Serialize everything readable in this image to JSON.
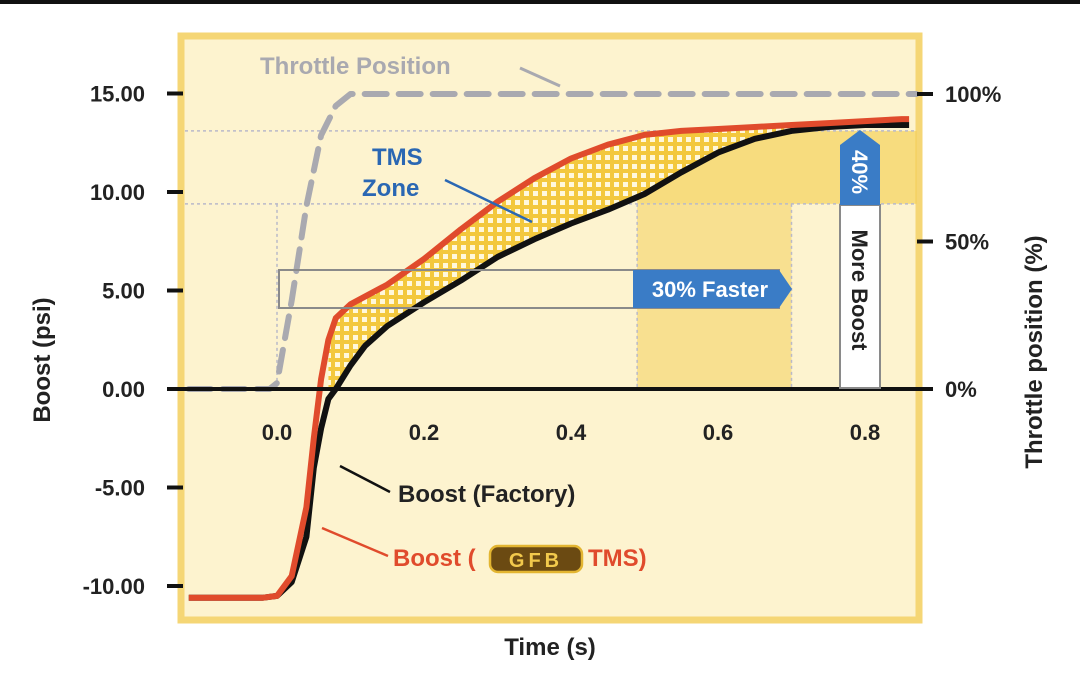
{
  "chart_data": {
    "type": "line",
    "xlabel": "Time (s)",
    "ylabel_left": "Boost (psi)",
    "ylabel_right": "Throttle position (%)",
    "xlim": [
      -0.13,
      0.87
    ],
    "ylim": [
      -11,
      17.5
    ],
    "x_ticks": [
      0.0,
      0.2,
      0.4,
      0.6,
      0.8
    ],
    "x_tick_labels": [
      "0.0",
      "0.2",
      "0.4",
      "0.6",
      "0.8"
    ],
    "y_ticks": [
      15,
      10,
      5,
      0,
      -5,
      -10
    ],
    "y_tick_labels": [
      "15.00",
      "10.00",
      "5.00",
      "0.00",
      "-5.00",
      "-10.00"
    ],
    "y_right_ticks": [
      100,
      50,
      0
    ],
    "y_right_tick_labels": [
      "100%",
      "50%",
      "0%"
    ],
    "series": [
      {
        "name": "Throttle Position",
        "axis": "right",
        "style": "dashed",
        "color": "#a9a9b0",
        "x": [
          -0.12,
          -0.04,
          -0.01,
          0.0,
          0.02,
          0.04,
          0.06,
          0.08,
          0.1,
          0.12,
          0.87
        ],
        "y": [
          0,
          0,
          0,
          2,
          30,
          62,
          86,
          96,
          100,
          100,
          100
        ]
      },
      {
        "name": "Boost (Factory)",
        "axis": "left",
        "color": "#111111",
        "x": [
          -0.12,
          -0.02,
          0.0,
          0.02,
          0.04,
          0.05,
          0.06,
          0.07,
          0.08,
          0.1,
          0.12,
          0.15,
          0.2,
          0.25,
          0.3,
          0.35,
          0.4,
          0.45,
          0.5,
          0.55,
          0.6,
          0.65,
          0.7,
          0.75,
          0.8,
          0.85,
          0.86
        ],
        "y": [
          -10.6,
          -10.6,
          -10.5,
          -9.8,
          -7.5,
          -4.0,
          -2.0,
          -0.5,
          0.0,
          1.2,
          2.2,
          3.2,
          4.4,
          5.5,
          6.7,
          7.6,
          8.4,
          9.1,
          9.9,
          11.0,
          12.0,
          12.7,
          13.1,
          13.3,
          13.4,
          13.4,
          13.4
        ]
      },
      {
        "name": "Boost (GFB TMS)",
        "axis": "left",
        "color": "#e04b2c",
        "x": [
          -0.12,
          -0.02,
          0.0,
          0.02,
          0.04,
          0.05,
          0.06,
          0.07,
          0.08,
          0.1,
          0.15,
          0.2,
          0.25,
          0.3,
          0.35,
          0.4,
          0.45,
          0.5,
          0.55,
          0.6,
          0.65,
          0.7,
          0.75,
          0.8,
          0.85,
          0.86
        ],
        "y": [
          -10.6,
          -10.6,
          -10.5,
          -9.5,
          -6.0,
          -2.5,
          0.5,
          2.5,
          3.6,
          4.3,
          5.3,
          6.6,
          8.1,
          9.5,
          10.7,
          11.7,
          12.4,
          12.9,
          13.1,
          13.2,
          13.3,
          13.4,
          13.5,
          13.6,
          13.7,
          13.7
        ]
      }
    ],
    "annotations": {
      "tms_zone": [
        "TMS",
        "Zone"
      ],
      "faster": "30% Faster",
      "more_boost_pct": "40%",
      "more_boost_text": "More Boost",
      "throttle_label": "Throttle Position",
      "factory_label": "Boost (Factory)",
      "tms_label_prefix": "Boost (",
      "tms_logo": "GFB",
      "tms_label_suffix": "TMS)"
    },
    "colors": {
      "background": "#fdf3cf",
      "frame": "#f5d675",
      "accent_blue": "#2a67b3",
      "zone_fill": "#f3c83d",
      "highlight_band": "#f7dc85"
    }
  }
}
